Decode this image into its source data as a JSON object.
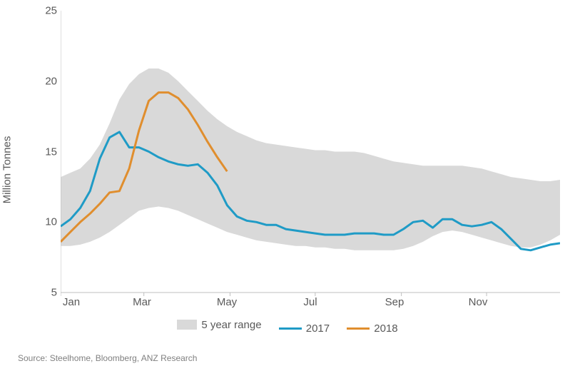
{
  "chart": {
    "type": "line_with_range",
    "y_axis_label": "Million Tonnes",
    "ylim": [
      5,
      25
    ],
    "yticks": [
      5,
      10,
      15,
      20,
      25
    ],
    "x_tick_labels": [
      "Jan",
      "Mar",
      "May",
      "Jul",
      "Sep",
      "Nov"
    ],
    "x_tick_positions": [
      0,
      8.5,
      17.3,
      26,
      34.8,
      43.5
    ],
    "x_span_weeks": 52,
    "background_color": "#ffffff",
    "axis_color": "#bfbfbf",
    "text_color": "#595959",
    "label_fontsize": 15,
    "range_band": {
      "label": "5 year range",
      "fill": "#d9d9d9",
      "upper": [
        13.2,
        13.5,
        13.8,
        14.5,
        15.5,
        17.0,
        18.7,
        19.8,
        20.5,
        20.9,
        20.9,
        20.6,
        20.0,
        19.3,
        18.6,
        17.9,
        17.3,
        16.8,
        16.4,
        16.1,
        15.8,
        15.6,
        15.5,
        15.4,
        15.3,
        15.2,
        15.1,
        15.1,
        15.0,
        15.0,
        15.0,
        14.9,
        14.7,
        14.5,
        14.3,
        14.2,
        14.1,
        14.0,
        14.0,
        14.0,
        14.0,
        14.0,
        13.9,
        13.8,
        13.6,
        13.4,
        13.2,
        13.1,
        13.0,
        12.9,
        12.9,
        13.0
      ],
      "lower": [
        8.3,
        8.3,
        8.4,
        8.6,
        8.9,
        9.3,
        9.8,
        10.3,
        10.8,
        11.0,
        11.1,
        11.0,
        10.8,
        10.5,
        10.2,
        9.9,
        9.6,
        9.3,
        9.1,
        8.9,
        8.7,
        8.6,
        8.5,
        8.4,
        8.3,
        8.3,
        8.2,
        8.2,
        8.1,
        8.1,
        8.0,
        8.0,
        8.0,
        8.0,
        8.0,
        8.1,
        8.3,
        8.6,
        9.0,
        9.3,
        9.4,
        9.3,
        9.1,
        8.9,
        8.7,
        8.5,
        8.3,
        8.2,
        8.2,
        8.4,
        8.7,
        9.1
      ]
    },
    "series": [
      {
        "name": "2017",
        "color": "#1f9bc6",
        "width": 3,
        "values": [
          9.7,
          10.2,
          11.0,
          12.2,
          14.5,
          16.0,
          16.4,
          15.3,
          15.3,
          15.0,
          14.6,
          14.3,
          14.1,
          14.0,
          14.1,
          13.5,
          12.6,
          11.2,
          10.4,
          10.1,
          10.0,
          9.8,
          9.8,
          9.5,
          9.4,
          9.3,
          9.2,
          9.1,
          9.1,
          9.1,
          9.2,
          9.2,
          9.2,
          9.1,
          9.1,
          9.5,
          10.0,
          10.1,
          9.6,
          10.2,
          10.2,
          9.8,
          9.7,
          9.8,
          10.0,
          9.5,
          8.8,
          8.1,
          8.0,
          8.2,
          8.4,
          8.5
        ]
      },
      {
        "name": "2018",
        "color": "#e08e2e",
        "width": 3,
        "values": [
          8.6,
          9.3,
          10.0,
          10.6,
          11.3,
          12.1,
          12.2,
          13.8,
          16.5,
          18.6,
          19.2,
          19.2,
          18.8,
          18.0,
          16.9,
          15.7,
          14.6,
          13.6
        ]
      }
    ]
  },
  "legend": {
    "range_label": "5 year range",
    "s1_label": "2017",
    "s2_label": "2018"
  },
  "source_text": "Source: Steelhome, Bloomberg, ANZ Research"
}
